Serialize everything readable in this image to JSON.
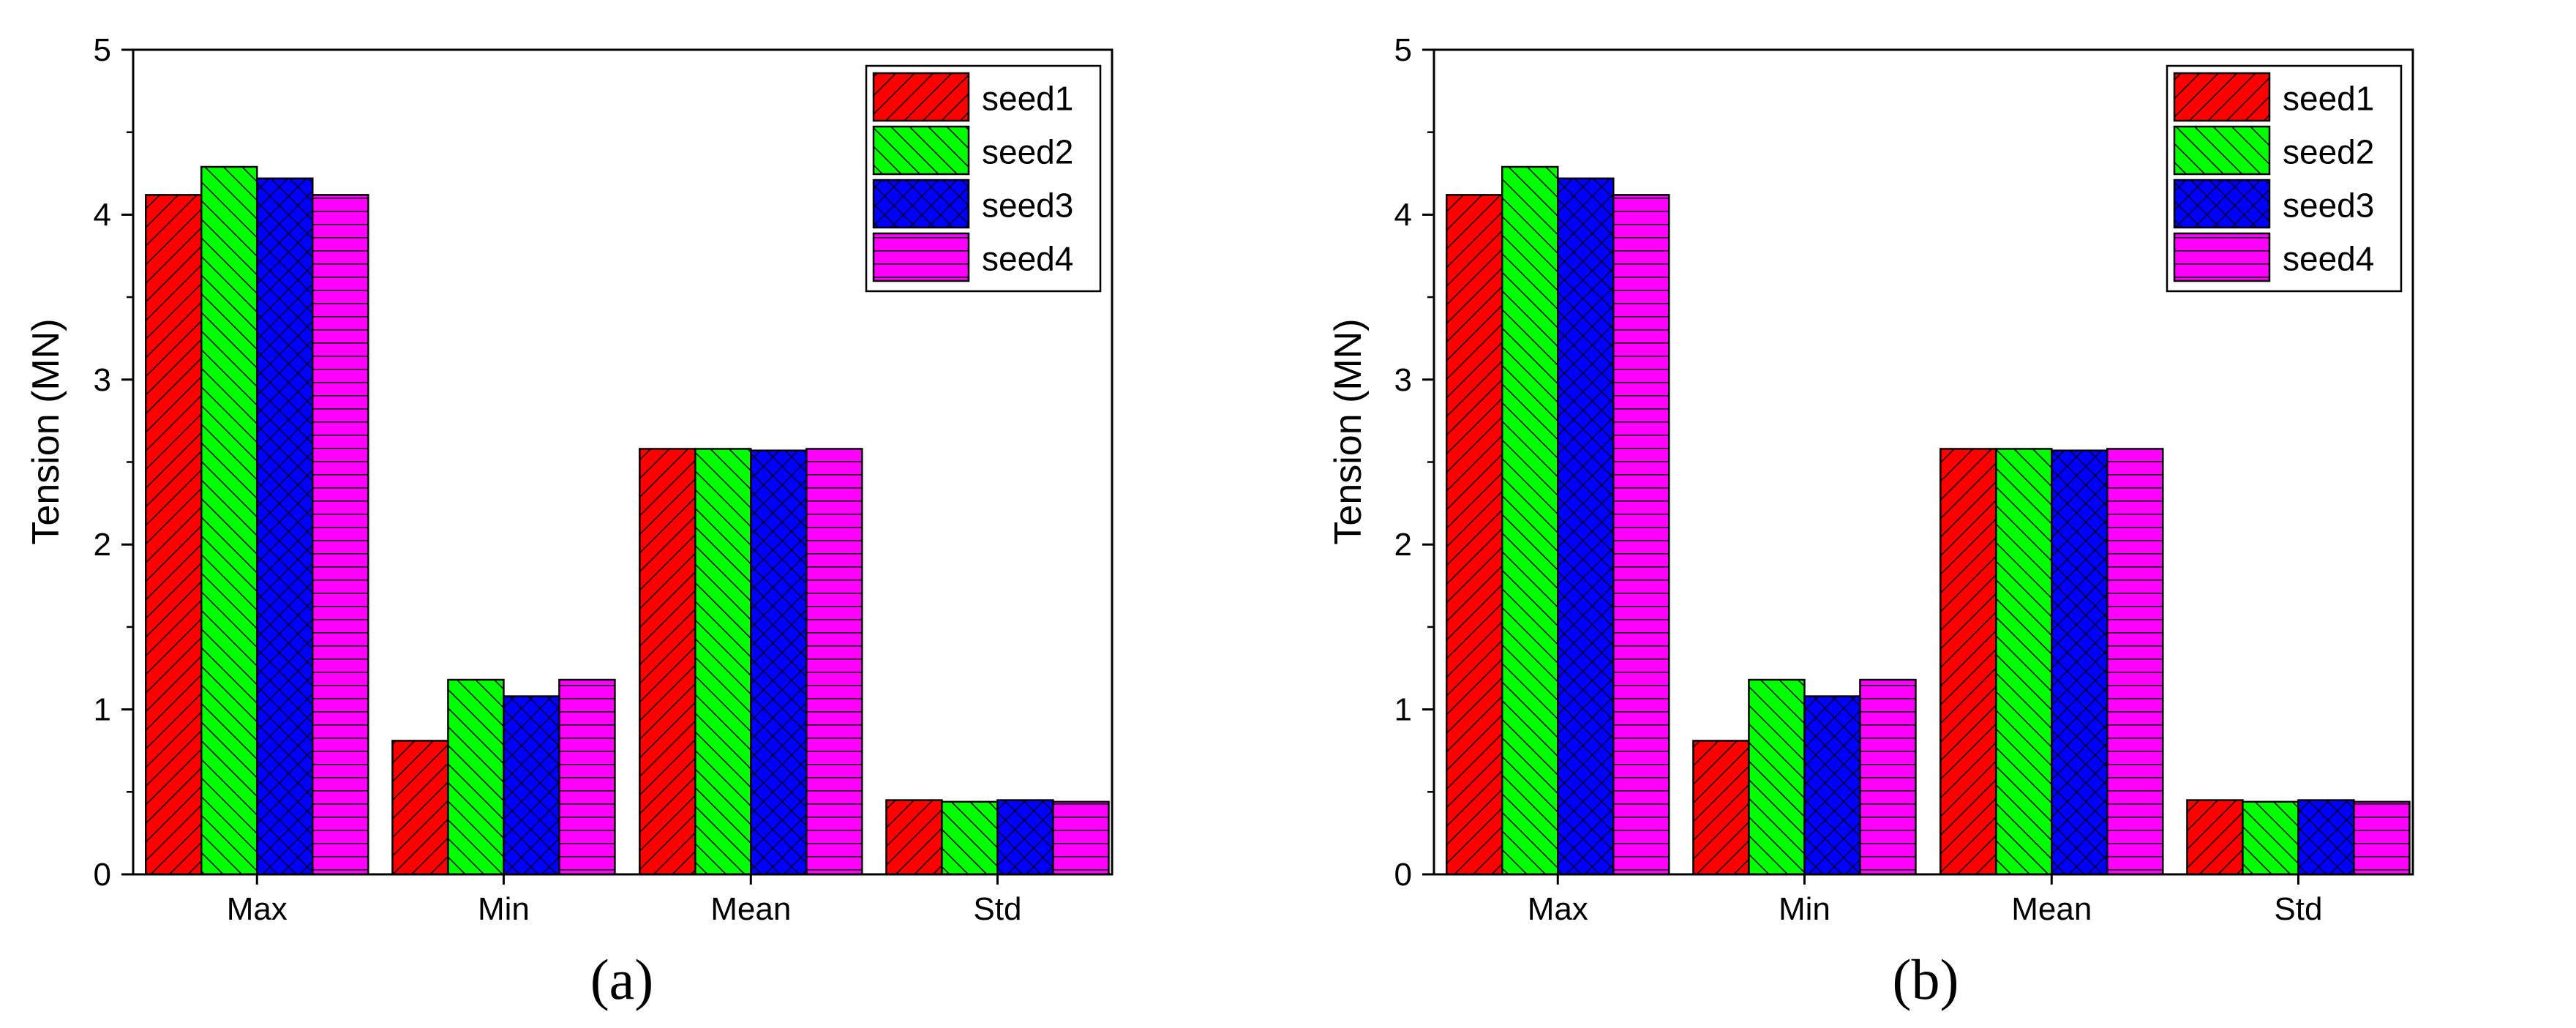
{
  "figure": {
    "panels": [
      "(a)",
      "(b)"
    ]
  },
  "colors": {
    "seed1": "#ff0000",
    "seed2": "#00ff00",
    "seed3": "#0000ff",
    "seed4": "#ff00ff",
    "hatch": "#000000"
  },
  "chart_data": [
    {
      "type": "bar",
      "panel_label": "(a)",
      "categories": [
        "Max",
        "Min",
        "Mean",
        "Std"
      ],
      "series": [
        {
          "name": "seed1",
          "values": [
            4.12,
            0.81,
            2.58,
            0.45
          ]
        },
        {
          "name": "seed2",
          "values": [
            4.29,
            1.18,
            2.58,
            0.44
          ]
        },
        {
          "name": "seed3",
          "values": [
            4.22,
            1.08,
            2.57,
            0.45
          ]
        },
        {
          "name": "seed4",
          "values": [
            4.12,
            1.18,
            2.58,
            0.44
          ]
        }
      ],
      "title": "",
      "xlabel": "",
      "ylabel": "Tension (MN)",
      "ylim": [
        0,
        5
      ],
      "yticks": [
        "0",
        "1",
        "2",
        "3",
        "4",
        "5"
      ],
      "legend": "top-right",
      "grid": false
    },
    {
      "type": "bar",
      "panel_label": "(b)",
      "categories": [
        "Max",
        "Min",
        "Mean",
        "Std"
      ],
      "series": [
        {
          "name": "seed1",
          "values": [
            4.12,
            0.81,
            2.58,
            0.45
          ]
        },
        {
          "name": "seed2",
          "values": [
            4.29,
            1.18,
            2.58,
            0.44
          ]
        },
        {
          "name": "seed3",
          "values": [
            4.22,
            1.08,
            2.57,
            0.45
          ]
        },
        {
          "name": "seed4",
          "values": [
            4.12,
            1.18,
            2.58,
            0.44
          ]
        }
      ],
      "title": "",
      "xlabel": "",
      "ylabel": "Tension (MN)",
      "ylim": [
        0,
        5
      ],
      "yticks": [
        "0",
        "1",
        "2",
        "3",
        "4",
        "5"
      ],
      "legend": "top-right",
      "grid": false
    }
  ]
}
